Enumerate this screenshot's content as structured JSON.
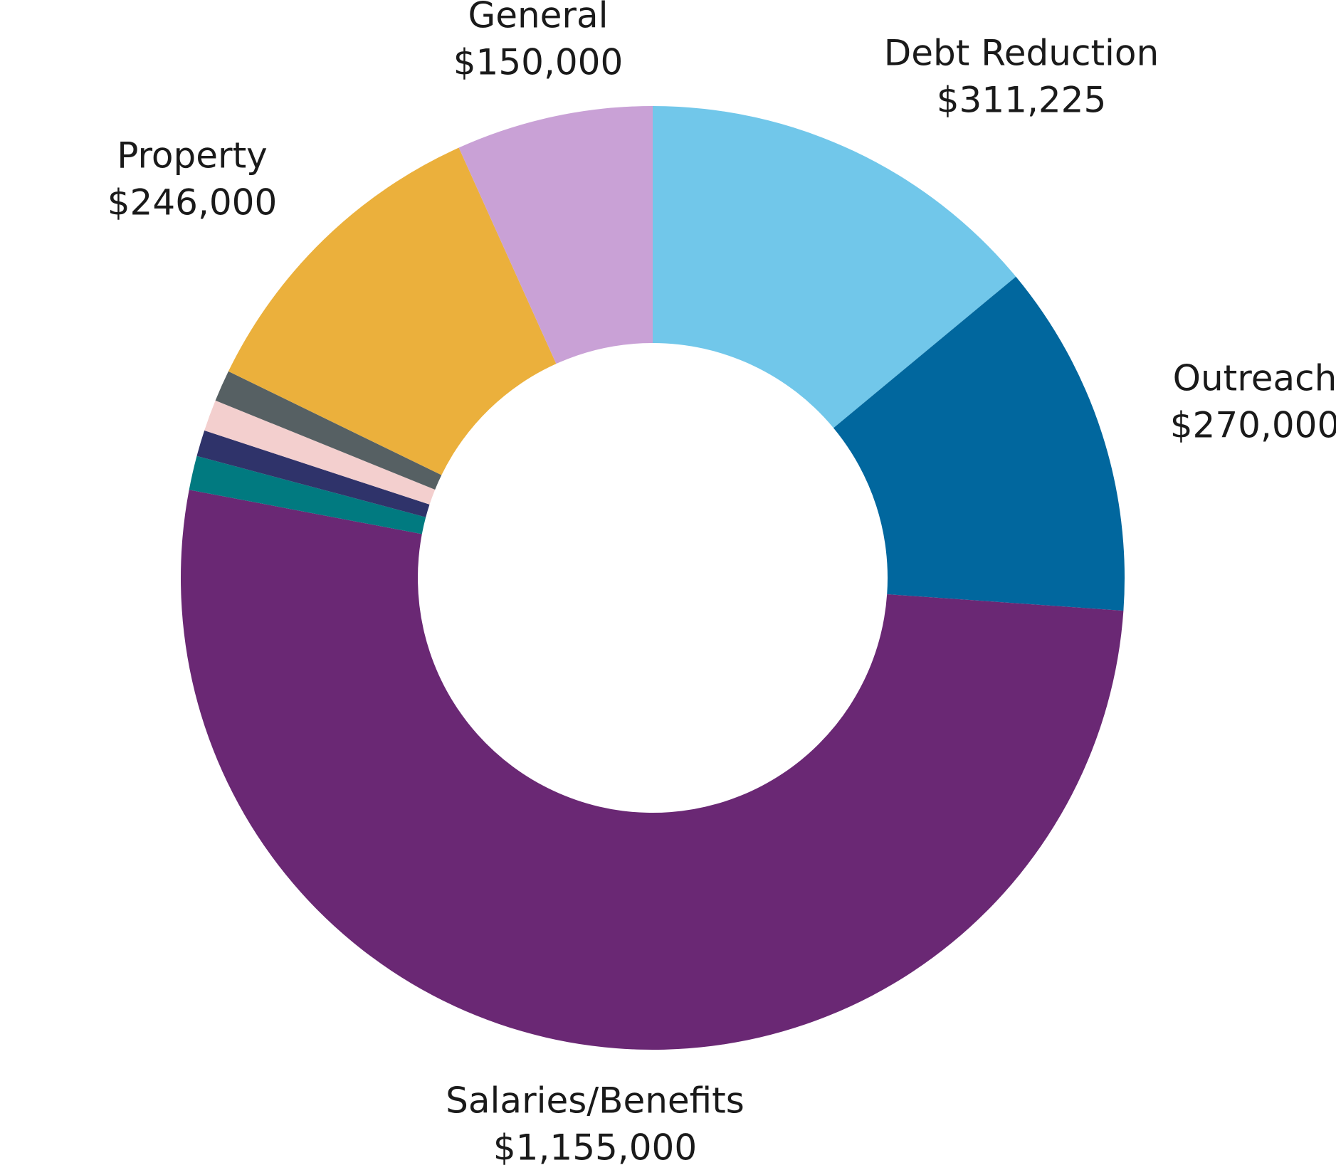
{
  "chart_data": {
    "type": "pie",
    "variant": "donut",
    "title": "",
    "slices": [
      {
        "name": "Debt Reduction",
        "value": 311225,
        "value_label": "$311,225",
        "color": "#71c7ea"
      },
      {
        "name": "Outreach",
        "value": 270000,
        "value_label": "$270,000",
        "color": "#01679e"
      },
      {
        "name": "Salaries/Benefits",
        "value": 1155000,
        "value_label": "$1,155,000",
        "color": "#6a2874"
      },
      {
        "name": "",
        "value": 26000,
        "value_label": "",
        "color": "#017a80"
      },
      {
        "name": "",
        "value": 20000,
        "value_label": "",
        "color": "#2f336a"
      },
      {
        "name": "",
        "value": 24000,
        "value_label": "",
        "color": "#f3cfce"
      },
      {
        "name": "",
        "value": 24000,
        "value_label": "",
        "color": "#566063"
      },
      {
        "name": "Property",
        "value": 246000,
        "value_label": "$246,000",
        "color": "#ebb03c"
      },
      {
        "name": "General",
        "value": 150000,
        "value_label": "$150,000",
        "color": "#c9a1d6"
      }
    ]
  }
}
